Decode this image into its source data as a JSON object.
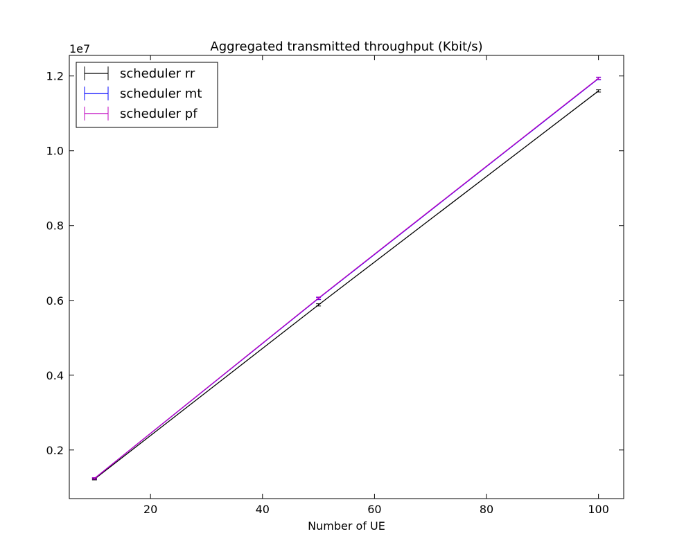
{
  "chart_data": {
    "type": "line",
    "title": "Aggregated transmitted throughput (Kbit/s)",
    "xlabel": "Number of UE",
    "ylabel": "",
    "y_offset_label": "1e7",
    "x_ticks": [
      20,
      40,
      60,
      80,
      100
    ],
    "y_ticks": [
      0.2,
      0.4,
      0.6,
      0.8,
      1.0,
      1.2
    ],
    "y_tick_labels": [
      "0.2",
      "0.4",
      "0.6",
      "0.8",
      "1.0",
      "1.2"
    ],
    "xlim": [
      5.5,
      104.5
    ],
    "ylim": [
      0.07,
      1.255
    ],
    "grid": false,
    "legend_position": "upper-left",
    "error_bars": true,
    "series": [
      {
        "name": "scheduler rr",
        "color": "#000000",
        "x": [
          10,
          50,
          100
        ],
        "y": [
          0.122,
          0.588,
          1.16
        ],
        "err": [
          0.002,
          0.003,
          0.003
        ]
      },
      {
        "name": "scheduler mt",
        "color": "#0000ff",
        "x": [
          10,
          50,
          100
        ],
        "y": [
          0.124,
          0.605,
          1.193
        ],
        "err": [
          0.002,
          0.003,
          0.003
        ]
      },
      {
        "name": "scheduler pf",
        "color": "#bf00bf",
        "x": [
          10,
          50,
          100
        ],
        "y": [
          0.124,
          0.606,
          1.194
        ],
        "err": [
          0.002,
          0.003,
          0.003
        ]
      }
    ]
  }
}
